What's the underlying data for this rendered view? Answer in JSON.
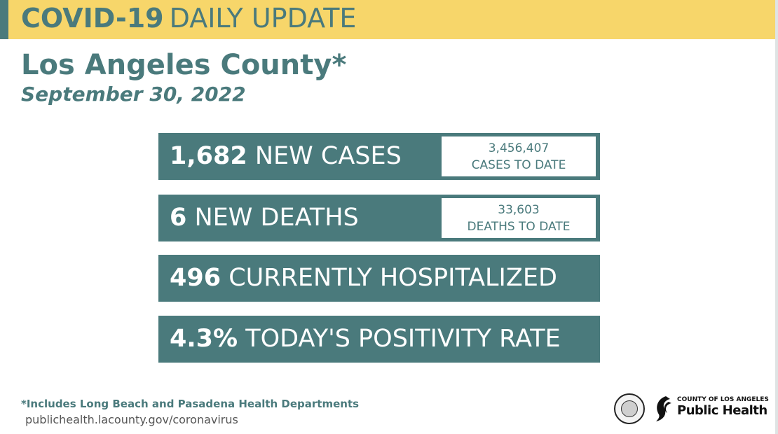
{
  "header": {
    "title_bold": "COVID-19",
    "title_light": "DAILY UPDATE"
  },
  "county": "Los Angeles County*",
  "date": "September 30, 2022",
  "stats": [
    {
      "number": "1,682",
      "label": "NEW CASES",
      "sub_value": "3,456,407",
      "sub_label": "CASES TO DATE"
    },
    {
      "number": "6",
      "label": "NEW DEATHS",
      "sub_value": "33,603",
      "sub_label": "DEATHS TO DATE"
    },
    {
      "number": "496",
      "label": "CURRENTLY HOSPITALIZED"
    },
    {
      "number": "4.3%",
      "label": "TODAY'S POSITIVITY RATE"
    }
  ],
  "footnote": "*Includes Long Beach and Pasadena Health Departments",
  "url": "publichealth.lacounty.gov/coronavirus",
  "logo": {
    "small": "COUNTY OF LOS ANGELES",
    "big": "Public Health"
  },
  "colors": {
    "teal": "#4a7a7c",
    "yellow": "#f7d66a"
  }
}
